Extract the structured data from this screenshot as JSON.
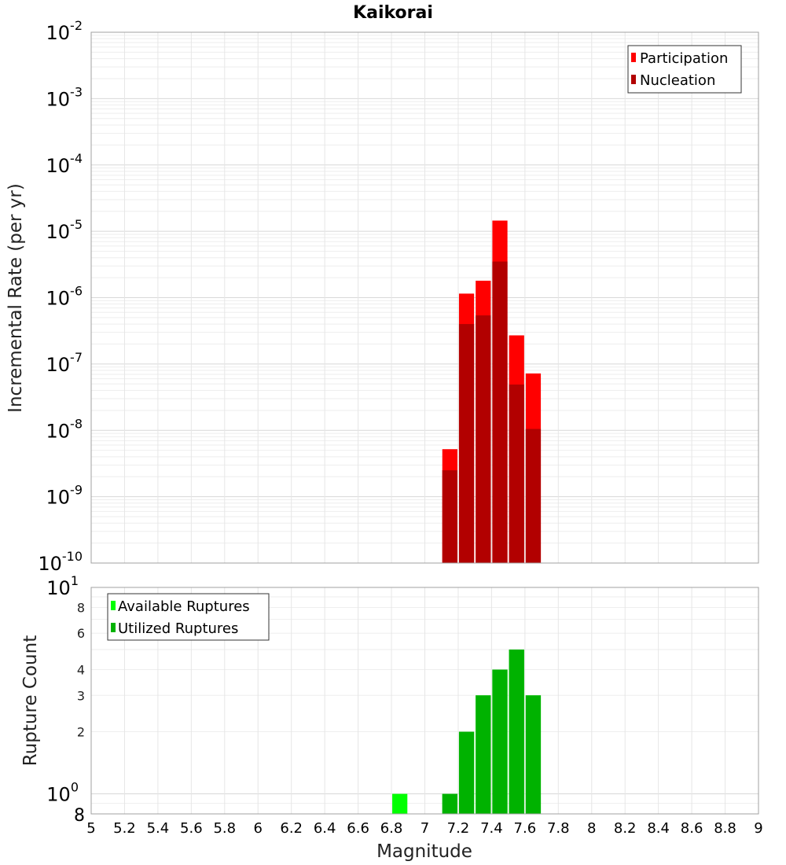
{
  "chart_data": [
    {
      "type": "bar",
      "title": "Kaikorai",
      "ylabel": "Incremental Rate (per yr)",
      "yscale": "log",
      "ylim": [
        1e-10,
        0.01
      ],
      "y_tick_exponents": [
        "-2",
        "-3",
        "-4",
        "-5",
        "-6",
        "-7",
        "-8",
        "-9",
        "-10"
      ],
      "y_tick_base": "10",
      "legend_position": "top-right",
      "bar_width": 0.1,
      "series": [
        {
          "name": "Participation",
          "color": "#ff0000",
          "x": [
            7.15,
            7.25,
            7.35,
            7.45,
            7.55,
            7.65
          ],
          "values": [
            5.2e-09,
            1.15e-06,
            1.8e-06,
            1.45e-05,
            2.7e-07,
            7.2e-08
          ]
        },
        {
          "name": "Nucleation",
          "color": "#b20000",
          "x": [
            7.15,
            7.25,
            7.35,
            7.45,
            7.55,
            7.65
          ],
          "values": [
            2.5e-09,
            4e-07,
            5.4e-07,
            3.5e-06,
            4.9e-08,
            1.05e-08
          ]
        }
      ]
    },
    {
      "type": "bar",
      "ylabel": "Rupture Count",
      "xlabel": "Magnitude",
      "yscale": "log",
      "ylim": [
        0.8,
        10
      ],
      "xlim": [
        5,
        9
      ],
      "x_ticks": [
        "5",
        "5.2",
        "5.4",
        "5.6",
        "5.8",
        "6",
        "6.2",
        "6.4",
        "6.6",
        "6.8",
        "7",
        "7.2",
        "7.4",
        "7.6",
        "7.8",
        "8",
        "8.2",
        "8.4",
        "8.6",
        "8.8",
        "9"
      ],
      "y_minor_tick_labels": [
        "8",
        "6",
        "4",
        "3",
        "2"
      ],
      "y_min_label": "8",
      "y_major_labels": [
        {
          "base": "10",
          "exp": "1"
        },
        {
          "base": "10",
          "exp": "0"
        }
      ],
      "legend_position": "top-left",
      "bar_width": 0.1,
      "series": [
        {
          "name": "Available Ruptures",
          "color": "#00ff00",
          "x": [
            6.85,
            7.15,
            7.25,
            7.35,
            7.45,
            7.55,
            7.65
          ],
          "values": [
            1,
            1,
            2,
            3,
            4,
            5,
            3
          ]
        },
        {
          "name": "Utilized Ruptures",
          "color": "#00b200",
          "x": [
            7.15,
            7.25,
            7.35,
            7.45,
            7.55,
            7.65
          ],
          "values": [
            1,
            2,
            3,
            4,
            5,
            3
          ]
        }
      ]
    }
  ]
}
